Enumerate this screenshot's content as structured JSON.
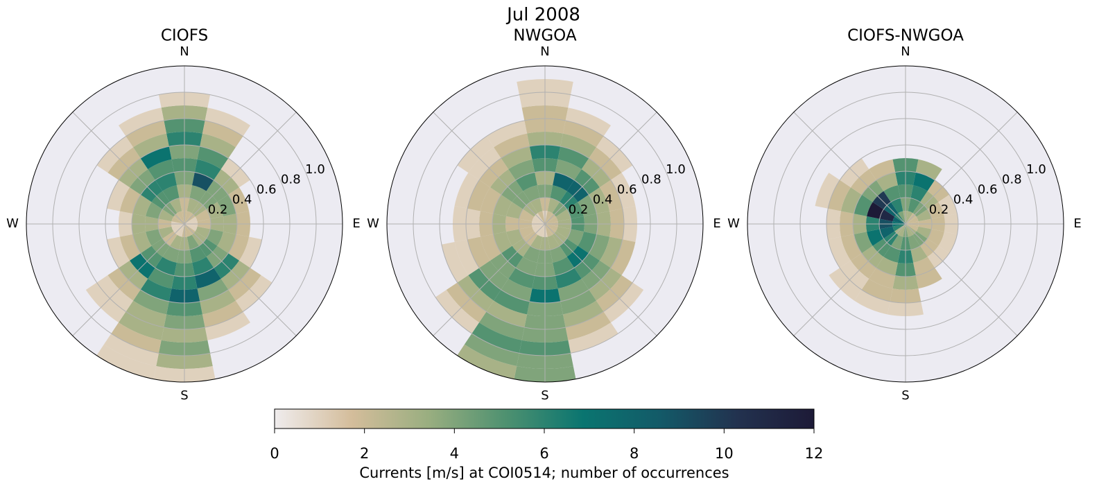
{
  "chart_data": {
    "type": "polar-histogram",
    "title": "Jul 2008",
    "direction_labels": [
      "N",
      "E",
      "S",
      "W"
    ],
    "theta": [
      0,
      22.5,
      45,
      67.5,
      90,
      112.5,
      135,
      157.5,
      180,
      202.5,
      225,
      247.5,
      270,
      292.5,
      315,
      337.5
    ],
    "r_bins": [
      0,
      0.1,
      0.2,
      0.3,
      0.4,
      0.5,
      0.6,
      0.7,
      0.8,
      0.9,
      1.0,
      1.1,
      1.2
    ],
    "rlim": [
      0,
      1.2
    ],
    "rticks": [
      0.2,
      0.4,
      0.6,
      0.8,
      {
        "value": 1,
        "label": "1.0"
      }
    ],
    "colormap": [
      "#efeced",
      "#d4bd9b",
      "#99ae80",
      "#4e9170",
      "#0a7570",
      "#135a68",
      "#22324f",
      "#1d1a37"
    ],
    "subplots": [
      {
        "title": "CIOFS",
        "values": [
          [
            2,
            2,
            3,
            4,
            5,
            4,
            6,
            5,
            3,
            1,
            null,
            null
          ],
          [
            2,
            3,
            4,
            9,
            6,
            5,
            3,
            2,
            1,
            null,
            null,
            null
          ],
          [
            2,
            3,
            4,
            4,
            3,
            1,
            null,
            null,
            null,
            null,
            null,
            null
          ],
          [
            1,
            2,
            3,
            4,
            2,
            null,
            null,
            null,
            null,
            null,
            null,
            null
          ],
          [
            1,
            2,
            3,
            3,
            2,
            null,
            null,
            null,
            null,
            null,
            null,
            null
          ],
          [
            1,
            3,
            4,
            3,
            2,
            1,
            null,
            null,
            null,
            null,
            null,
            null
          ],
          [
            2,
            3,
            5,
            4,
            6,
            3,
            2,
            1,
            null,
            null,
            null,
            null
          ],
          [
            2,
            4,
            5,
            6,
            8,
            4,
            3,
            2,
            1,
            null,
            null,
            null
          ],
          [
            2,
            3,
            4,
            5,
            6,
            8,
            5,
            4,
            3,
            4,
            3,
            1
          ],
          [
            1,
            3,
            4,
            6,
            5,
            6,
            4,
            3,
            3,
            2,
            1,
            1
          ],
          [
            1,
            2,
            4,
            5,
            7,
            3,
            2,
            1,
            1,
            null,
            null,
            null
          ],
          [
            1,
            3,
            4,
            3,
            2,
            1,
            null,
            null,
            null,
            null,
            null,
            null
          ],
          [
            1,
            2,
            3,
            3,
            1,
            null,
            null,
            null,
            null,
            null,
            null,
            null
          ],
          [
            2,
            3,
            4,
            3,
            2,
            1,
            null,
            null,
            null,
            null,
            null,
            null
          ],
          [
            2,
            4,
            5,
            6,
            4,
            3,
            2,
            1,
            null,
            null,
            null,
            null
          ],
          [
            2,
            3,
            5,
            6,
            5,
            7,
            3,
            2,
            1,
            null,
            null,
            null
          ]
        ]
      },
      {
        "title": "NWGOA",
        "values": [
          [
            1,
            2,
            4,
            3,
            5,
            6,
            3,
            2,
            2,
            1,
            1,
            null
          ],
          [
            2,
            3,
            5,
            8,
            4,
            5,
            3,
            2,
            1,
            null,
            null,
            null
          ],
          [
            2,
            4,
            6,
            8,
            5,
            3,
            2,
            1,
            null,
            null,
            null,
            null
          ],
          [
            2,
            3,
            5,
            4,
            3,
            2,
            1,
            null,
            null,
            null,
            null,
            null
          ],
          [
            2,
            3,
            5,
            4,
            3,
            2,
            1,
            null,
            null,
            null,
            null,
            null
          ],
          [
            2,
            3,
            4,
            5,
            4,
            3,
            2,
            null,
            null,
            null,
            null,
            null
          ],
          [
            2,
            3,
            5,
            7,
            5,
            4,
            3,
            2,
            1,
            null,
            null,
            null
          ],
          [
            2,
            3,
            4,
            5,
            6,
            4,
            4,
            3,
            2,
            1,
            null,
            null
          ],
          [
            1,
            3,
            4,
            4,
            5,
            7,
            4,
            4,
            4,
            5,
            4,
            4
          ],
          [
            1,
            3,
            4,
            4,
            5,
            4,
            5,
            3,
            4,
            5,
            4,
            3
          ],
          [
            1,
            2,
            3,
            5,
            4,
            4,
            5,
            3,
            2,
            1,
            null,
            null
          ],
          [
            1,
            2,
            3,
            3,
            2,
            2,
            1,
            1,
            null,
            null,
            null,
            null
          ],
          [
            1,
            2,
            2,
            3,
            2,
            1,
            1,
            null,
            null,
            null,
            null,
            null
          ],
          [
            1,
            2,
            3,
            3,
            2,
            2,
            1,
            null,
            null,
            null,
            null,
            null
          ],
          [
            1,
            3,
            4,
            4,
            3,
            2,
            1,
            1,
            null,
            null,
            null,
            null
          ],
          [
            2,
            3,
            4,
            5,
            4,
            3,
            2,
            1,
            null,
            null,
            null,
            null
          ]
        ]
      },
      {
        "title": "CIOFS-NWGOA",
        "values": [
          [
            3,
            4,
            5,
            6,
            5,
            null,
            null,
            null,
            null,
            null,
            null,
            null
          ],
          [
            3,
            5,
            6,
            7,
            3,
            null,
            null,
            null,
            null,
            null,
            null,
            null
          ],
          [
            2,
            4,
            3,
            2,
            null,
            null,
            null,
            null,
            null,
            null,
            null,
            null
          ],
          [
            2,
            3,
            2,
            1,
            null,
            null,
            null,
            null,
            null,
            null,
            null,
            null
          ],
          [
            2,
            2,
            2,
            1,
            null,
            null,
            null,
            null,
            null,
            null,
            null,
            null
          ],
          [
            2,
            3,
            2,
            1,
            null,
            null,
            null,
            null,
            null,
            null,
            null,
            null
          ],
          [
            3,
            4,
            2,
            1,
            null,
            null,
            null,
            null,
            null,
            null,
            null,
            null
          ],
          [
            3,
            4,
            3,
            2,
            2,
            null,
            null,
            null,
            null,
            null,
            null,
            null
          ],
          [
            4,
            5,
            6,
            5,
            3,
            2,
            1,
            null,
            null,
            null,
            null,
            null
          ],
          [
            3,
            4,
            5,
            3,
            2,
            2,
            1,
            null,
            null,
            null,
            null,
            null
          ],
          [
            3,
            6,
            5,
            3,
            2,
            1,
            1,
            null,
            null,
            null,
            null,
            null
          ],
          [
            6,
            8,
            7,
            4,
            2,
            1,
            null,
            null,
            null,
            null,
            null,
            null
          ],
          [
            7,
            9,
            6,
            3,
            2,
            1,
            null,
            null,
            null,
            null,
            null,
            null
          ],
          [
            8,
            11,
            12,
            5,
            3,
            2,
            1,
            null,
            null,
            null,
            null,
            null
          ],
          [
            6,
            8,
            10,
            4,
            2,
            1,
            null,
            null,
            null,
            null,
            null,
            null
          ],
          [
            4,
            6,
            5,
            3,
            2,
            null,
            null,
            null,
            null,
            null,
            null,
            null
          ]
        ]
      }
    ],
    "colorbar": {
      "label": "Currents [m/s] at COI0514; number of occurrences",
      "clim": [
        0,
        12
      ],
      "cticks": [
        0,
        2,
        4,
        6,
        8,
        10,
        12
      ]
    }
  }
}
